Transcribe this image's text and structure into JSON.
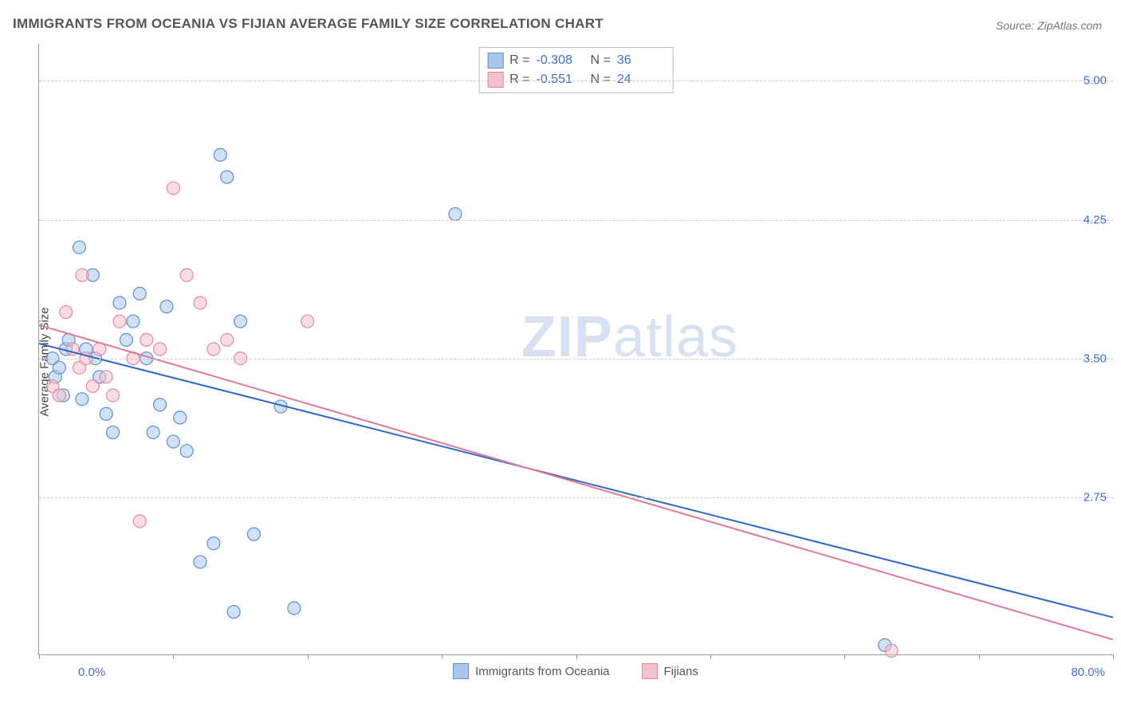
{
  "title": "IMMIGRANTS FROM OCEANIA VS FIJIAN AVERAGE FAMILY SIZE CORRELATION CHART",
  "source_label": "Source: ZipAtlas.com",
  "watermark_bold": "ZIP",
  "watermark_light": "atlas",
  "y_axis_label": "Average Family Size",
  "x_min_label": "0.0%",
  "x_max_label": "80.0%",
  "chart": {
    "type": "scatter",
    "xlim": [
      0,
      80
    ],
    "ylim": [
      1.9,
      5.2
    ],
    "y_ticks": [
      2.75,
      3.5,
      4.25,
      5.0
    ],
    "x_ticks": [
      0,
      10,
      20,
      30,
      40,
      50,
      60,
      70,
      80
    ],
    "grid_color": "#cccccc",
    "axis_color": "#999999",
    "background_color": "#ffffff",
    "marker_radius": 8,
    "marker_opacity": 0.55,
    "line_width": 2,
    "series": [
      {
        "name": "Immigrants from Oceania",
        "fill_color": "#a9c6ec",
        "stroke_color": "#5b8fd6",
        "line_color": "#2f67c9",
        "R": "-0.308",
        "N": "36",
        "regression": {
          "x1": 0,
          "y1": 3.58,
          "x2": 80,
          "y2": 2.1
        },
        "points": [
          [
            1.0,
            3.5
          ],
          [
            1.2,
            3.4
          ],
          [
            1.5,
            3.45
          ],
          [
            1.8,
            3.3
          ],
          [
            2.0,
            3.55
          ],
          [
            2.2,
            3.6
          ],
          [
            3.0,
            4.1
          ],
          [
            3.2,
            3.28
          ],
          [
            3.5,
            3.55
          ],
          [
            4.0,
            3.95
          ],
          [
            4.2,
            3.5
          ],
          [
            4.5,
            3.4
          ],
          [
            5.0,
            3.2
          ],
          [
            5.5,
            3.1
          ],
          [
            6.0,
            3.8
          ],
          [
            6.5,
            3.6
          ],
          [
            7.0,
            3.7
          ],
          [
            7.5,
            3.85
          ],
          [
            8.0,
            3.5
          ],
          [
            8.5,
            3.1
          ],
          [
            9.0,
            3.25
          ],
          [
            9.5,
            3.78
          ],
          [
            10.0,
            3.05
          ],
          [
            10.5,
            3.18
          ],
          [
            11.0,
            3.0
          ],
          [
            12.0,
            2.4
          ],
          [
            13.0,
            2.5
          ],
          [
            13.5,
            4.6
          ],
          [
            14.0,
            4.48
          ],
          [
            14.5,
            2.13
          ],
          [
            15.0,
            3.7
          ],
          [
            16.0,
            2.55
          ],
          [
            18.0,
            3.24
          ],
          [
            19.0,
            2.15
          ],
          [
            31.0,
            4.28
          ],
          [
            63.0,
            1.95
          ]
        ]
      },
      {
        "name": "Fijians",
        "fill_color": "#f4c1cc",
        "stroke_color": "#e08aa0",
        "line_color": "#e07a94",
        "R": "-0.551",
        "N": "24",
        "regression": {
          "x1": 0,
          "y1": 3.68,
          "x2": 80,
          "y2": 1.98
        },
        "points": [
          [
            1.0,
            3.35
          ],
          [
            1.5,
            3.3
          ],
          [
            2.0,
            3.75
          ],
          [
            2.5,
            3.55
          ],
          [
            3.0,
            3.45
          ],
          [
            3.2,
            3.95
          ],
          [
            3.5,
            3.5
          ],
          [
            4.0,
            3.35
          ],
          [
            4.5,
            3.55
          ],
          [
            5.0,
            3.4
          ],
          [
            5.5,
            3.3
          ],
          [
            6.0,
            3.7
          ],
          [
            7.0,
            3.5
          ],
          [
            8.0,
            3.6
          ],
          [
            9.0,
            3.55
          ],
          [
            10.0,
            4.42
          ],
          [
            11.0,
            3.95
          ],
          [
            12.0,
            3.8
          ],
          [
            13.0,
            3.55
          ],
          [
            14.0,
            3.6
          ],
          [
            15.0,
            3.5
          ],
          [
            7.5,
            2.62
          ],
          [
            20.0,
            3.7
          ],
          [
            63.5,
            1.92
          ]
        ]
      }
    ]
  },
  "stats_legend_labels": {
    "R": "R =",
    "N": "N ="
  }
}
